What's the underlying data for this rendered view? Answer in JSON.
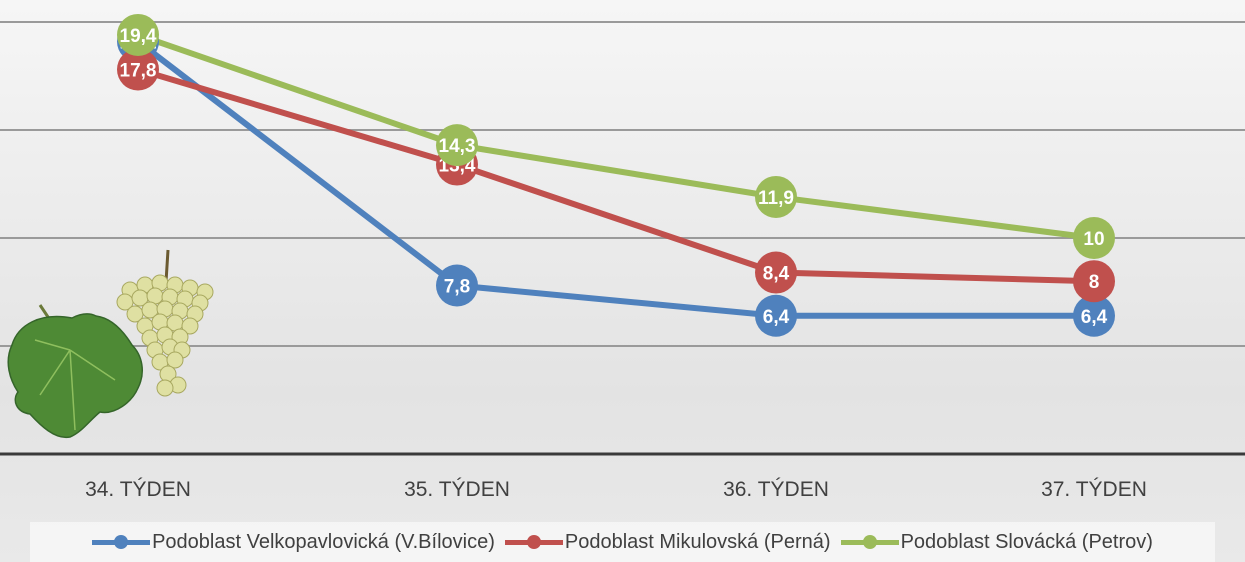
{
  "chart_data": {
    "type": "line",
    "categories": [
      "34. TÝDEN",
      "35. TÝDEN",
      "36. TÝDEN",
      "37. TÝDEN"
    ],
    "series": [
      {
        "name": "Podoblast Velkopavlovická (V.Bílovice)",
        "color": "#4f81bd",
        "values": [
          19.1,
          7.8,
          6.4,
          6.4
        ],
        "labels": [
          "19,1",
          "7,8",
          "6,4",
          "6,4"
        ]
      },
      {
        "name": "Podoblast Mikulovská (Perná)",
        "color": "#c0504d",
        "values": [
          17.8,
          13.4,
          8.4,
          8.0
        ],
        "labels": [
          "17,8",
          "13,4",
          "8,4",
          "8"
        ]
      },
      {
        "name": "Podoblast Slovácká (Petrov)",
        "color": "#9bbb59",
        "values": [
          19.4,
          14.3,
          11.9,
          10.0
        ],
        "labels": [
          "19,4",
          "14,3",
          "11,9",
          "10"
        ]
      }
    ],
    "ylim": [
      0,
      20
    ],
    "grid": true,
    "legend_position": "bottom",
    "title": "",
    "xlabel": "",
    "ylabel": "",
    "decoration": "grape-leaf-and-grape-bunch-image"
  }
}
